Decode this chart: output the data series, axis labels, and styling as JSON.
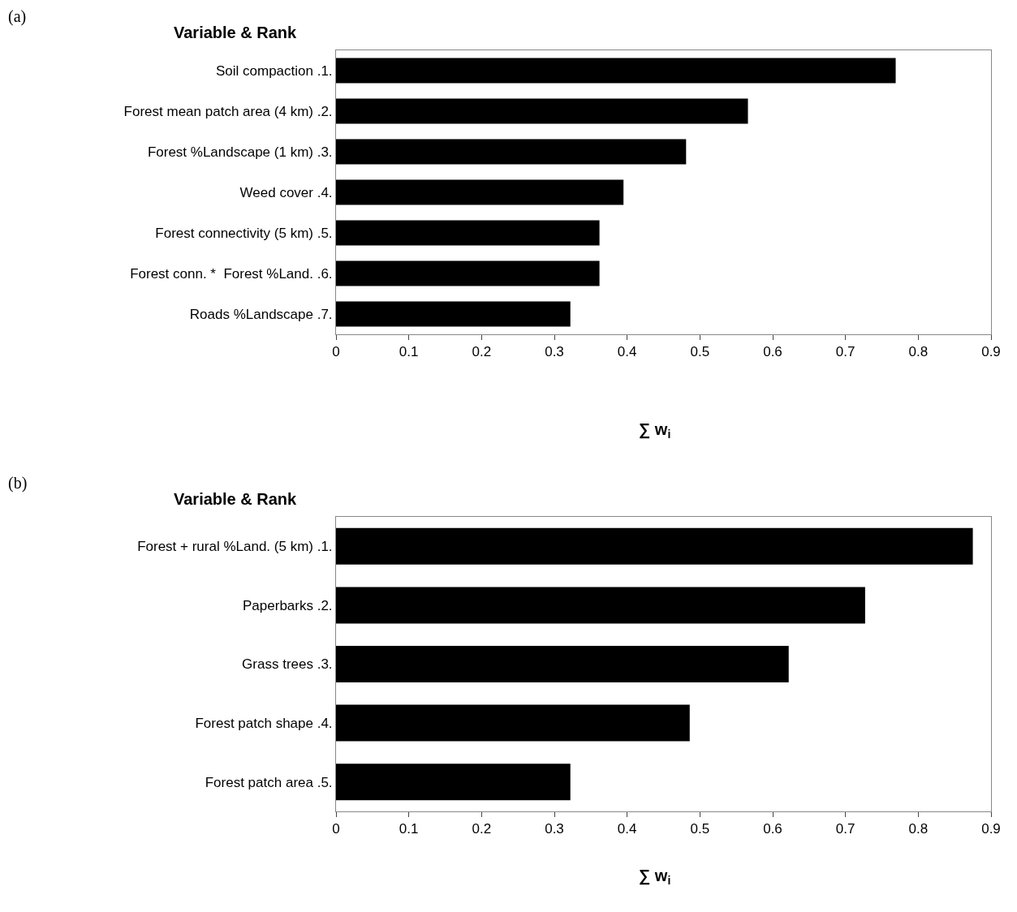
{
  "chart_data": [
    {
      "type": "bar",
      "orientation": "horizontal",
      "ylabel": "Variable & Rank",
      "xlabel": "∑ w$_{i}$",
      "annotations": [
        "(a)"
      ],
      "categories": [
        "Soil compaction .1.",
        "Forest mean patch area (4 km) .2.",
        "Forest %Landscape (1 km) .3.",
        "Weed cover .4.",
        "Forest connectivity (5 km) .5.",
        "Forest conn. *  Forest %Land. .6.",
        "Roads %Landscape .7."
      ],
      "values": [
        0.769,
        0.566,
        0.481,
        0.395,
        0.362,
        0.362,
        0.322
      ],
      "color": "#000000",
      "xlim": [
        0,
        0.9
      ],
      "xticks": [
        0,
        0.1,
        0.2,
        0.3,
        0.4,
        0.5,
        0.6,
        0.7,
        0.8,
        0.9
      ]
    },
    {
      "type": "bar",
      "orientation": "horizontal",
      "ylabel": "Variable & Rank",
      "xlabel": "∑ w$_{i}$",
      "annotations": [
        "(b)"
      ],
      "categories": [
        "Forest + rural %Land. (5 km) .1.",
        "Paperbarks .2.",
        "Grass trees .3.",
        "Forest patch shape .4.",
        "Forest patch area .5."
      ],
      "values": [
        0.875,
        0.727,
        0.622,
        0.486,
        0.322
      ],
      "color": "#000000",
      "xlim": [
        0,
        0.9
      ],
      "xticks": [
        0,
        0.1,
        0.2,
        0.3,
        0.4,
        0.5,
        0.6,
        0.7,
        0.8,
        0.9
      ]
    }
  ]
}
